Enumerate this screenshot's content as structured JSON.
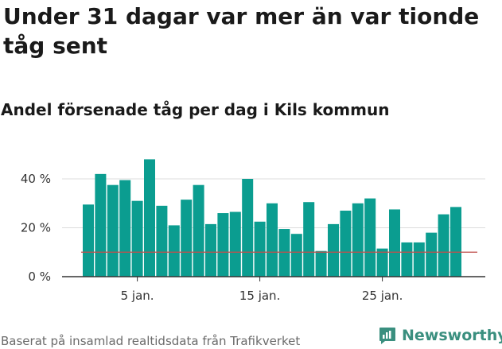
{
  "title": "Under 31 dagar var mer än var tionde tåg sent",
  "subtitle": "Andel försenade tåg per dag i Kils kommun",
  "source": "Baserat på insamlad realtidsdata från Trafikverket",
  "logo_text": "Newsworthy",
  "colors": {
    "bar": "#0b9d90",
    "reference_line": "#c0504d",
    "grid": "#dddddd",
    "axis": "#333333"
  },
  "chart_data": {
    "type": "bar",
    "x": [
      "1 jan.",
      "2 jan.",
      "3 jan.",
      "4 jan.",
      "5 jan.",
      "6 jan.",
      "7 jan.",
      "8 jan.",
      "9 jan.",
      "10 jan.",
      "11 jan.",
      "12 jan.",
      "13 jan.",
      "14 jan.",
      "15 jan.",
      "16 jan.",
      "17 jan.",
      "18 jan.",
      "19 jan.",
      "20 jan.",
      "21 jan.",
      "22 jan.",
      "23 jan.",
      "24 jan.",
      "25 jan.",
      "26 jan.",
      "27 jan.",
      "28 jan.",
      "29 jan.",
      "30 jan.",
      "31 jan."
    ],
    "values": [
      29.5,
      42,
      37.5,
      39.5,
      31,
      48,
      29,
      21,
      31.5,
      37.5,
      21.5,
      26,
      26.5,
      40,
      22.5,
      30,
      19.5,
      17.5,
      30.5,
      10.5,
      21.5,
      27,
      30,
      32,
      11.5,
      27.5,
      14,
      14,
      18,
      25.5,
      28.5
    ],
    "reference_line": 10,
    "ylim": [
      0,
      50
    ],
    "yticks": [
      0,
      20,
      40
    ],
    "ytick_labels": [
      "0 %",
      "20 %",
      "40 %"
    ],
    "xtick_labels": [
      {
        "at": "5 jan.",
        "label": "5 jan."
      },
      {
        "at": "15 jan.",
        "label": "15 jan."
      },
      {
        "at": "25 jan.",
        "label": "25 jan."
      }
    ],
    "grid": true
  }
}
